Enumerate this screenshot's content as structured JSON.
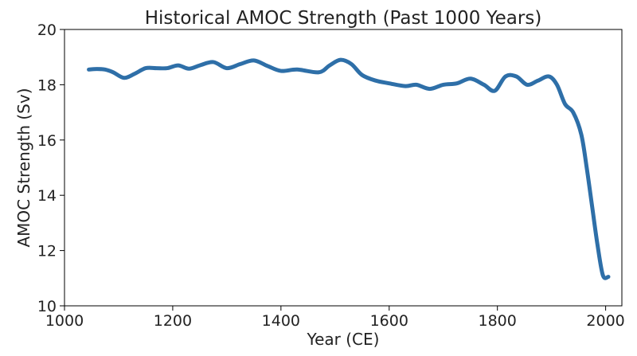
{
  "chart_data": {
    "type": "line",
    "title": "Historical AMOC Strength (Past 1000 Years)",
    "xlabel": "Year (CE)",
    "ylabel": "AMOC Strength (Sv)",
    "xlim": [
      1000,
      2030
    ],
    "ylim": [
      10,
      20
    ],
    "xticks": [
      1000,
      1200,
      1400,
      1600,
      1800,
      2000
    ],
    "yticks": [
      10,
      12,
      14,
      16,
      18,
      20
    ],
    "grid": false,
    "line_color": "#2e6fa8",
    "series": [
      {
        "name": "",
        "x": [
          1045,
          1060,
          1075,
          1090,
          1110,
          1130,
          1150,
          1170,
          1190,
          1210,
          1230,
          1250,
          1275,
          1300,
          1325,
          1350,
          1375,
          1400,
          1430,
          1470,
          1490,
          1510,
          1530,
          1550,
          1575,
          1600,
          1630,
          1650,
          1675,
          1700,
          1725,
          1750,
          1775,
          1795,
          1815,
          1835,
          1855,
          1875,
          1895,
          1910,
          1925,
          1940,
          1955,
          1965,
          1975,
          1985,
          1995,
          2005
        ],
        "y": [
          18.55,
          18.57,
          18.55,
          18.45,
          18.25,
          18.4,
          18.6,
          18.6,
          18.6,
          18.7,
          18.58,
          18.7,
          18.82,
          18.6,
          18.75,
          18.88,
          18.68,
          18.5,
          18.55,
          18.45,
          18.7,
          18.9,
          18.75,
          18.35,
          18.15,
          18.05,
          17.95,
          18.0,
          17.85,
          18.0,
          18.05,
          18.22,
          18.0,
          17.78,
          18.3,
          18.3,
          18.0,
          18.15,
          18.3,
          18.0,
          17.3,
          17.0,
          16.2,
          15.0,
          13.6,
          12.2,
          11.1,
          11.05
        ]
      }
    ]
  }
}
